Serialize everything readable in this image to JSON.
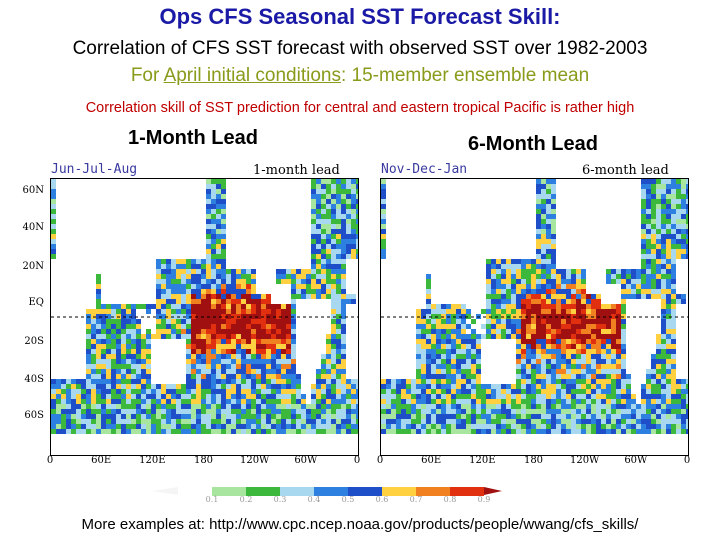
{
  "title": "Ops CFS Seasonal SST Forecast Skill:",
  "subtitle_line1": "Correlation of CFS SST forecast with observed SST over 1982-2003",
  "subtitle_line2_prefix": "For ",
  "subtitle_line2_link": "April initial conditions",
  "subtitle_line2_suffix": ": 15-member ensemble mean",
  "note": "Correlation skill of SST prediction for central and eastern tropical Pacific is rather high",
  "panels": [
    {
      "lead_title": "1-Month Lead",
      "season": "Jun-Jul-Aug",
      "lead_label": "1-month lead"
    },
    {
      "lead_title": "6-Month Lead",
      "season": "Nov-Dec-Jan",
      "lead_label": "6-month lead"
    }
  ],
  "lat_ticks": [
    "60N",
    "40N",
    "20N",
    "EQ",
    "20S",
    "40S",
    "60S"
  ],
  "lon_ticks": [
    "0",
    "60E",
    "120E",
    "180",
    "120W",
    "60W",
    "0"
  ],
  "colorbar": {
    "labels": [
      "0.1",
      "0.2",
      "0.3",
      "0.4",
      "0.5",
      "0.6",
      "0.7",
      "0.8",
      "0.9"
    ],
    "colors": [
      "#ffffff",
      "#a8e6a0",
      "#3cb83c",
      "#a8d8f0",
      "#2d7fe0",
      "#1f4fc8",
      "#ffd040",
      "#f08020",
      "#e03010",
      "#a01010"
    ]
  },
  "footer": "More examples at: http://www.cpc.ncep.noaa.gov/products/people/wwang/cfs_skills/"
}
